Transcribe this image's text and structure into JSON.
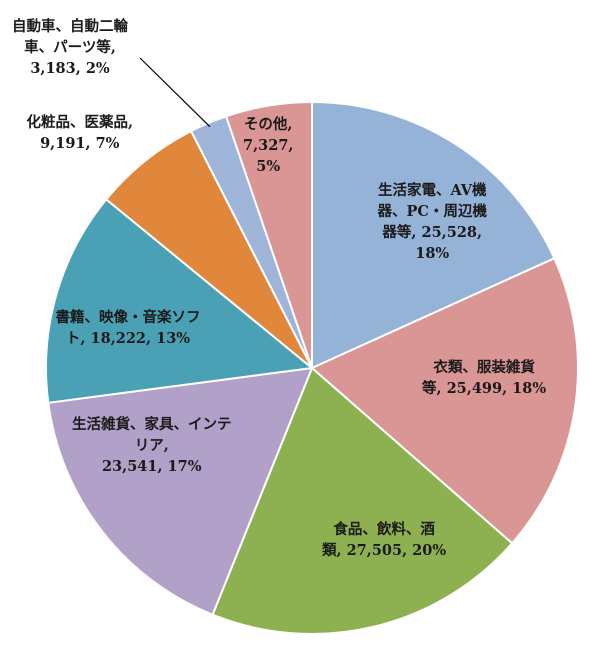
{
  "chart_data": {
    "type": "pie",
    "title": "",
    "legend": "none",
    "slices": [
      {
        "name": "生活家電、AV機器、PC・周辺機器等",
        "value": 25528,
        "percent": "18%",
        "color": "#95b3d7",
        "label_lines": [
          "生活家電、AV機",
          "器、PC・周辺機",
          "器等, 25,528,",
          "18%"
        ]
      },
      {
        "name": "衣類、服装雑貨等",
        "value": 25499,
        "percent": "18%",
        "color": "#d99694",
        "label_lines": [
          "衣類、服装雑貨",
          "等, 25,499, 18%"
        ]
      },
      {
        "name": "食品、飲料、酒類",
        "value": 27505,
        "percent": "20%",
        "color": "#8db151",
        "label_lines": [
          "食品、飲料、酒",
          "類, 27,505, 20%"
        ]
      },
      {
        "name": "生活雑貨、家具、インテリア",
        "value": 23541,
        "percent": "17%",
        "color": "#b1a0c7",
        "label_lines": [
          "生活雑貨、家具、インテ",
          "リア,",
          "23,541, 17%"
        ]
      },
      {
        "name": "書籍、映像・音楽ソフト",
        "value": 18222,
        "percent": "13%",
        "color": "#4aa1b5",
        "label_lines": [
          "書籍、映像・音楽ソフ",
          "ト, 18,222, 13%"
        ]
      },
      {
        "name": "化粧品、医薬品",
        "value": 9191,
        "percent": "7%",
        "color": "#e0873c",
        "label_lines": [
          "化粧品、医薬品,",
          "9,191, 7%"
        ]
      },
      {
        "name": "自動車、自動二輪車、パーツ等",
        "value": 3183,
        "percent": "2%",
        "color": "#9fb4d9",
        "label_lines": [
          "自動車、自動二輪",
          "車、パーツ等,",
          "3,183, 2%"
        ]
      },
      {
        "name": "その他",
        "value": 7327,
        "percent": "5%",
        "color": "#d99694",
        "label_lines": [
          "その他,",
          "7,327,",
          "5%"
        ]
      }
    ]
  }
}
